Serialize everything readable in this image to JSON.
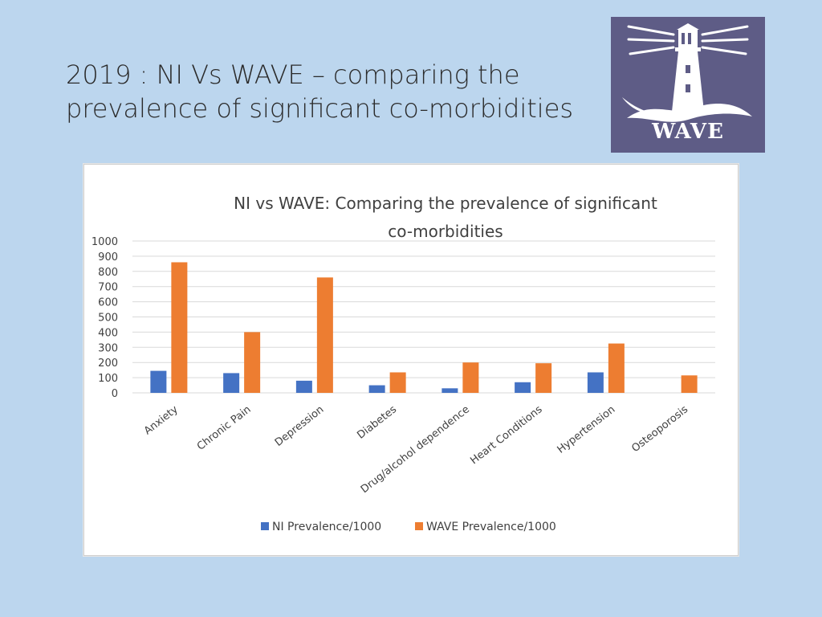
{
  "slide": {
    "title_line1": "2019 : NI Vs WAVE – comparing the",
    "title_line2": "prevalence of significant co-morbidities"
  },
  "logo": {
    "text": "WAVE",
    "icon": "lighthouse-icon",
    "background": "#5e5c86"
  },
  "chart_data": {
    "type": "bar",
    "title_line1": "NI vs WAVE: Comparing the prevalence of significant",
    "title_line2": "co-morbidities",
    "categories": [
      "Anxiety",
      "Chronic Pain",
      "Depression",
      "Diabetes",
      "Drug/alcohol dependence",
      "Heart Conditions",
      "Hypertension",
      "Osteoporosis"
    ],
    "series": [
      {
        "name": "NI Prevalence/1000",
        "color": "#4472c4",
        "values": [
          145,
          130,
          80,
          50,
          30,
          70,
          135,
          0
        ]
      },
      {
        "name": "WAVE Prevalence/1000",
        "color": "#ed7d31",
        "values": [
          860,
          400,
          760,
          135,
          200,
          195,
          325,
          115
        ]
      }
    ],
    "yticks": [
      "0",
      "100",
      "200",
      "300",
      "400",
      "500",
      "600",
      "700",
      "800",
      "900",
      "1000"
    ],
    "ylim": [
      0,
      1000
    ],
    "grid": true,
    "legend_position": "bottom"
  }
}
